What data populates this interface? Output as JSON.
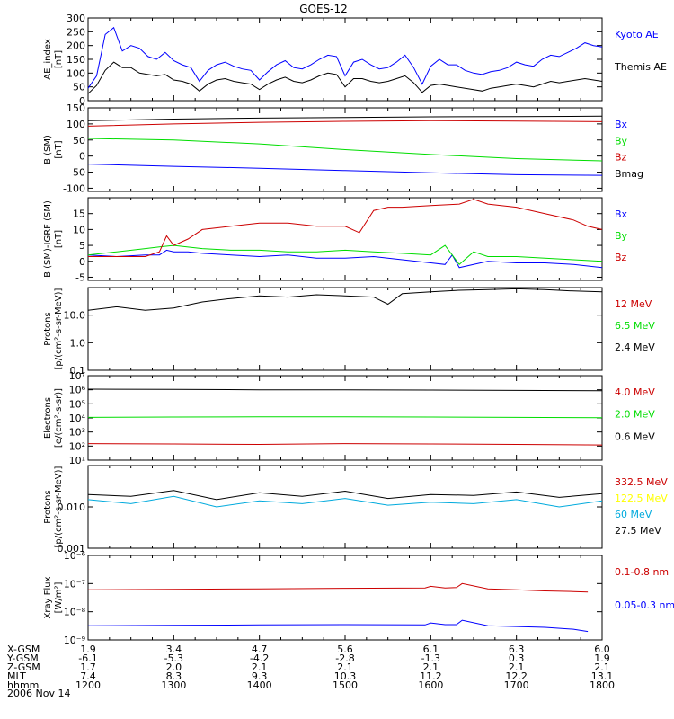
{
  "title": "GOES-12",
  "chart_data": [
    {
      "type": "line",
      "panel": "ae",
      "ylabel": [
        "AE_index",
        "[nT]"
      ],
      "ylim": [
        0,
        300
      ],
      "yticks": [
        "0",
        "50",
        "100",
        "150",
        "200",
        "250",
        "300"
      ],
      "series": [
        {
          "name": "Kyoto AE",
          "color": "#0000ff",
          "x": [
            0,
            6,
            12,
            18,
            24,
            30,
            36,
            42,
            48,
            54,
            60,
            66,
            72,
            78,
            84,
            90,
            96,
            102,
            108,
            114,
            120,
            126,
            132,
            138,
            144,
            150,
            156,
            162,
            168,
            174,
            180,
            186,
            192,
            198,
            204,
            210,
            216,
            222,
            228,
            234,
            240,
            246,
            252,
            258,
            264,
            270,
            276,
            282,
            288,
            294,
            300,
            306,
            312,
            318,
            324,
            330,
            336,
            342,
            348,
            354,
            360
          ],
          "values": [
            45,
            90,
            240,
            265,
            180,
            200,
            190,
            160,
            150,
            175,
            145,
            130,
            120,
            70,
            110,
            130,
            140,
            125,
            115,
            110,
            75,
            105,
            130,
            145,
            120,
            115,
            130,
            150,
            165,
            160,
            90,
            140,
            150,
            130,
            115,
            120,
            140,
            165,
            120,
            60,
            125,
            150,
            130,
            130,
            110,
            100,
            95,
            105,
            110,
            120,
            140,
            130,
            125,
            150,
            165,
            160,
            175,
            190,
            210,
            200,
            195
          ]
        },
        {
          "name": "Themis AE",
          "color": "#000000",
          "x": [
            0,
            6,
            12,
            18,
            24,
            30,
            36,
            42,
            48,
            54,
            60,
            66,
            72,
            78,
            84,
            90,
            96,
            102,
            108,
            114,
            120,
            126,
            132,
            138,
            144,
            150,
            156,
            162,
            168,
            174,
            180,
            186,
            192,
            198,
            204,
            210,
            216,
            222,
            228,
            234,
            240,
            246,
            252,
            258,
            264,
            270,
            276,
            282,
            288,
            294,
            300,
            306,
            312,
            318,
            324,
            330,
            336,
            342,
            348,
            354,
            360
          ],
          "values": [
            25,
            55,
            110,
            140,
            120,
            120,
            100,
            95,
            90,
            95,
            75,
            70,
            60,
            35,
            60,
            75,
            80,
            70,
            65,
            60,
            40,
            60,
            75,
            85,
            70,
            65,
            75,
            90,
            100,
            95,
            50,
            80,
            80,
            70,
            65,
            70,
            80,
            90,
            65,
            30,
            55,
            60,
            55,
            50,
            45,
            40,
            35,
            45,
            50,
            55,
            60,
            55,
            50,
            60,
            70,
            65,
            70,
            75,
            80,
            75,
            70
          ]
        }
      ]
    },
    {
      "type": "line",
      "panel": "b_sm",
      "ylabel": [
        "B (SM)",
        "[nT]"
      ],
      "ylim": [
        -110,
        150
      ],
      "yticks": [
        "-100",
        "-50",
        "0",
        "50",
        "100",
        "150"
      ],
      "series": [
        {
          "name": "Bx",
          "color": "#0000ff",
          "x": [
            0,
            60,
            120,
            180,
            240,
            300,
            360
          ],
          "values": [
            -25,
            -32,
            -38,
            -45,
            -52,
            -58,
            -60
          ]
        },
        {
          "name": "By",
          "color": "#00dd00",
          "x": [
            0,
            60,
            120,
            180,
            240,
            300,
            360
          ],
          "values": [
            55,
            50,
            38,
            20,
            5,
            -8,
            -15
          ]
        },
        {
          "name": "Bz",
          "color": "#cc0000",
          "x": [
            0,
            60,
            120,
            180,
            240,
            300,
            360
          ],
          "values": [
            93,
            100,
            105,
            108,
            110,
            109,
            107
          ]
        },
        {
          "name": "Bmag",
          "color": "#000000",
          "x": [
            0,
            60,
            120,
            180,
            240,
            300,
            360
          ],
          "values": [
            110,
            115,
            118,
            120,
            122,
            123,
            124
          ]
        }
      ]
    },
    {
      "type": "line",
      "panel": "b_igrf",
      "ylabel": [
        "B (SM)-IGRF (SM)",
        "[nT]"
      ],
      "ylim": [
        -6,
        20
      ],
      "yticks": [
        "-5",
        "0",
        "5",
        "10",
        "15"
      ],
      "series": [
        {
          "name": "Bx",
          "color": "#0000ff",
          "x": [
            0,
            20,
            40,
            50,
            55,
            60,
            70,
            80,
            100,
            120,
            140,
            160,
            180,
            200,
            210,
            220,
            230,
            240,
            250,
            255,
            260,
            270,
            280,
            300,
            320,
            340,
            360
          ],
          "values": [
            2,
            1.5,
            2,
            2,
            3.5,
            3,
            3,
            2.5,
            2,
            1.5,
            2,
            1,
            1,
            1.5,
            1,
            0.5,
            0,
            -0.5,
            -1,
            2,
            -2,
            -1,
            0,
            -0.5,
            -0.5,
            -1,
            -2
          ]
        },
        {
          "name": "By",
          "color": "#00dd00",
          "x": [
            0,
            20,
            40,
            50,
            60,
            80,
            100,
            120,
            140,
            160,
            180,
            200,
            220,
            240,
            250,
            260,
            270,
            280,
            300,
            320,
            340,
            360
          ],
          "values": [
            2,
            3,
            4,
            4.5,
            5,
            4,
            3.5,
            3.5,
            3,
            3,
            3.5,
            3,
            2.5,
            2,
            5,
            -1,
            3,
            1.5,
            1.5,
            1,
            0.5,
            0
          ]
        },
        {
          "name": "Bz",
          "color": "#cc0000",
          "x": [
            0,
            20,
            40,
            50,
            55,
            60,
            70,
            80,
            100,
            120,
            140,
            160,
            180,
            190,
            200,
            210,
            220,
            240,
            260,
            270,
            280,
            300,
            320,
            340,
            350,
            360
          ],
          "values": [
            1.5,
            1.5,
            1.5,
            3,
            8,
            5,
            7,
            10,
            11,
            12,
            12,
            11,
            11,
            9,
            16,
            17,
            17,
            17.5,
            18,
            19.5,
            18,
            17,
            15,
            13,
            11,
            10
          ]
        }
      ]
    },
    {
      "type": "line",
      "panel": "protons_low",
      "scale": "log",
      "ylabel": [
        "Protons",
        "[p/(cm²-s-sr-MeV)]"
      ],
      "ylim": [
        0.1,
        100
      ],
      "yticks": [
        "0.1",
        "1.0",
        "10.0"
      ],
      "series": [
        {
          "name": "12 MeV",
          "color": "#cc0000",
          "x": [],
          "values": []
        },
        {
          "name": "6.5 MeV",
          "color": "#00dd00",
          "x": [],
          "values": []
        },
        {
          "name": "2.4 MeV",
          "color": "#000000",
          "x": [
            0,
            20,
            40,
            60,
            80,
            100,
            120,
            140,
            160,
            180,
            200,
            210,
            220,
            240,
            260,
            280,
            300,
            320,
            340,
            360
          ],
          "values": [
            15,
            20,
            15,
            18,
            30,
            40,
            50,
            45,
            55,
            50,
            45,
            25,
            60,
            70,
            80,
            85,
            90,
            85,
            75,
            70
          ]
        }
      ]
    },
    {
      "type": "line",
      "panel": "electrons",
      "scale": "log",
      "ylabel": [
        "Electrons",
        "[e/(cm²-s-sr)]"
      ],
      "ylim": [
        10,
        10000000
      ],
      "yticks": [
        "10¹",
        "10²",
        "10³",
        "10⁴",
        "10⁵",
        "10⁶",
        "10⁷"
      ],
      "series": [
        {
          "name": "4.0 MeV",
          "color": "#cc0000",
          "x": [
            0,
            60,
            120,
            180,
            240,
            300,
            360
          ],
          "values": [
            150,
            140,
            130,
            150,
            140,
            130,
            120
          ]
        },
        {
          "name": "2.0 MeV",
          "color": "#00dd00",
          "x": [
            0,
            60,
            120,
            180,
            240,
            300,
            360
          ],
          "values": [
            11000,
            11500,
            12000,
            12000,
            11500,
            11000,
            10500
          ]
        },
        {
          "name": "0.6 MeV",
          "color": "#000000",
          "x": [
            0,
            60,
            120,
            180,
            240,
            300,
            360
          ],
          "values": [
            1100000,
            1050000,
            1000000,
            1000000,
            950000,
            900000,
            850000
          ]
        }
      ]
    },
    {
      "type": "line",
      "panel": "protons_high",
      "scale": "log",
      "ylabel": [
        "Protons",
        "[p/(cm²-s-sr-MeV)]"
      ],
      "ylim": [
        0.001,
        0.1
      ],
      "yticks": [
        "0.001",
        "0.010"
      ],
      "series": [
        {
          "name": "332.5 MeV",
          "color": "#cc0000",
          "x": [],
          "values": []
        },
        {
          "name": "122.5 MeV",
          "color": "#ffff00",
          "x": [],
          "values": []
        },
        {
          "name": "60 MeV",
          "color": "#00aadd",
          "x": [
            0,
            30,
            60,
            90,
            120,
            150,
            180,
            210,
            240,
            270,
            300,
            330,
            360
          ],
          "values": [
            0.015,
            0.012,
            0.018,
            0.01,
            0.014,
            0.012,
            0.016,
            0.011,
            0.013,
            0.012,
            0.015,
            0.01,
            0.014
          ]
        },
        {
          "name": "27.5 MeV",
          "color": "#000000",
          "x": [
            0,
            30,
            60,
            90,
            120,
            150,
            180,
            210,
            240,
            270,
            300,
            330,
            360
          ],
          "values": [
            0.02,
            0.018,
            0.025,
            0.015,
            0.022,
            0.018,
            0.024,
            0.016,
            0.02,
            0.019,
            0.023,
            0.017,
            0.021
          ]
        }
      ]
    },
    {
      "type": "line",
      "panel": "xray",
      "scale": "log",
      "ylabel": [
        "Xray Flux",
        "[W/m²]"
      ],
      "ylim": [
        1e-09,
        1e-06
      ],
      "yticks": [
        "10⁻⁹",
        "10⁻⁸",
        "10⁻⁷",
        "10⁻⁶"
      ],
      "series": [
        {
          "name": "0.1-0.8 nm",
          "color": "#cc0000",
          "x": [
            0,
            60,
            120,
            180,
            236,
            240,
            250,
            258,
            262,
            280,
            300,
            320,
            340,
            350
          ],
          "values": [
            6e-08,
            6.2e-08,
            6.5e-08,
            6.8e-08,
            7e-08,
            8e-08,
            7e-08,
            7.2e-08,
            1e-07,
            6.5e-08,
            6e-08,
            5.5e-08,
            5.2e-08,
            5e-08
          ]
        },
        {
          "name": "0.05-0.3 nm",
          "color": "#0000ff",
          "x": [
            0,
            60,
            120,
            180,
            236,
            240,
            250,
            258,
            262,
            280,
            300,
            320,
            340,
            350
          ],
          "values": [
            3.2e-09,
            3.3e-09,
            3.4e-09,
            3.5e-09,
            3.4e-09,
            4e-09,
            3.5e-09,
            3.5e-09,
            5e-09,
            3.2e-09,
            3e-09,
            2.8e-09,
            2.4e-09,
            2e-09
          ]
        }
      ]
    }
  ],
  "xaxis": {
    "rows": [
      {
        "label": "X-GSM",
        "values": [
          "1.9",
          "3.4",
          "4.7",
          "5.6",
          "6.1",
          "6.3",
          "6.0"
        ]
      },
      {
        "label": "Y-GSM",
        "values": [
          "-6.1",
          "-5.3",
          "-4.2",
          "-2.8",
          "-1.3",
          "0.3",
          "1.9"
        ]
      },
      {
        "label": "Z-GSM",
        "values": [
          "1.7",
          "2.0",
          "2.1",
          "2.1",
          "2.1",
          "2.1",
          "2.1"
        ]
      },
      {
        "label": "MLT",
        "values": [
          "7.4",
          "8.3",
          "9.3",
          "10.3",
          "11.2",
          "12.2",
          "13.1"
        ]
      },
      {
        "label": "hhmm",
        "values": [
          "1200",
          "1300",
          "1400",
          "1500",
          "1600",
          "1700",
          "1800"
        ]
      }
    ],
    "date": "2006 Nov 14"
  }
}
